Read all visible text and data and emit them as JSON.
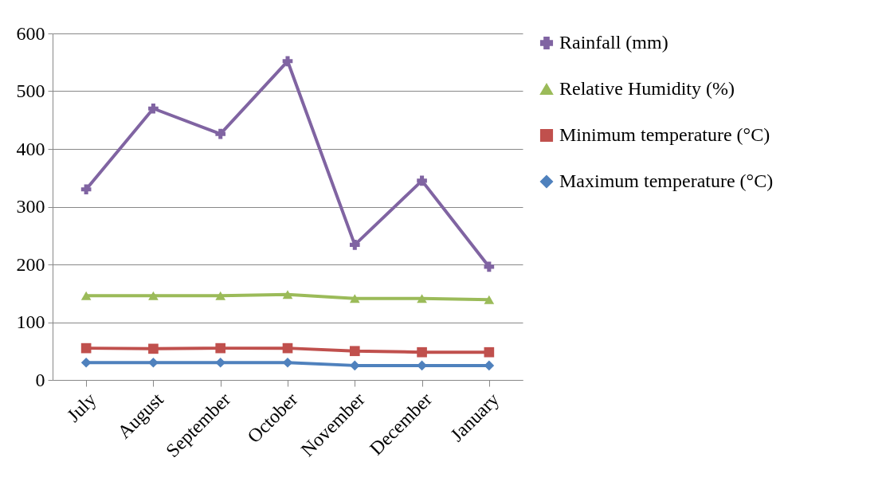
{
  "chart_data": {
    "type": "line",
    "categories": [
      "July",
      "August",
      "September",
      "October",
      "November",
      "December",
      "January"
    ],
    "series": [
      {
        "name": "Rainfall (mm)",
        "color": "#8064a2",
        "marker": "cross",
        "values": [
          330,
          470,
          426,
          552,
          234,
          345,
          196
        ]
      },
      {
        "name": "Relative Humidity (%)",
        "color": "#9bbb59",
        "marker": "triangle",
        "values": [
          146,
          146,
          146,
          148,
          141,
          141,
          139
        ]
      },
      {
        "name": "Minimum temperature (°C)",
        "color": "#c0504d",
        "marker": "square",
        "values": [
          55,
          54,
          55,
          55,
          50,
          48,
          48
        ]
      },
      {
        "name": "Maximum temperature (°C)",
        "color": "#4f81bd",
        "marker": "diamond",
        "values": [
          30,
          30,
          30,
          30,
          25,
          25,
          25
        ]
      }
    ],
    "ylim": [
      0,
      600
    ],
    "yticks": [
      0,
      100,
      200,
      300,
      400,
      500,
      600
    ],
    "grid": "y",
    "legend": "right"
  }
}
